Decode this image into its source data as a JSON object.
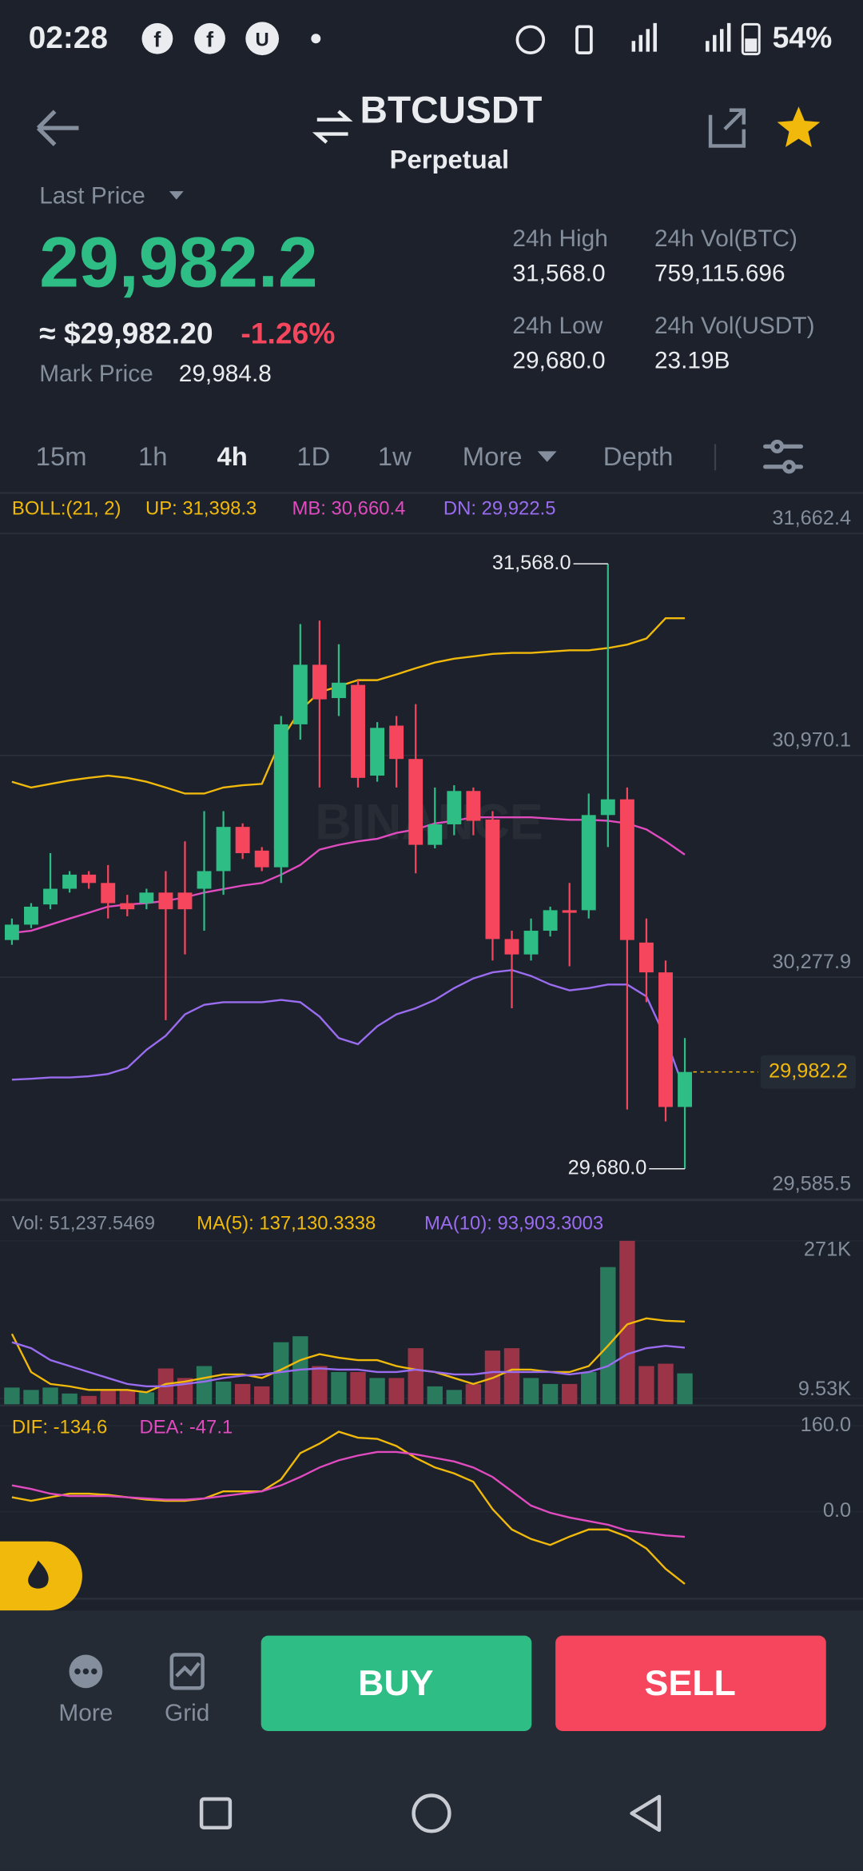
{
  "status_bar": {
    "time": "02:28",
    "battery": "54%"
  },
  "header": {
    "symbol": "BTCUSDT",
    "contract": "Perpetual"
  },
  "price": {
    "label": "Last Price",
    "last": "29,982.2",
    "fiat": "≈ $29,982.20",
    "change": "-1.26%",
    "mark_label": "Mark Price",
    "mark": "29,984.8"
  },
  "stats": [
    {
      "label": "24h High",
      "value": "31,568.0"
    },
    {
      "label": "24h Vol(BTC)",
      "value": "759,115.696"
    },
    {
      "label": "24h Low",
      "value": "29,680.0"
    },
    {
      "label": "24h Vol(USDT)",
      "value": "23.19B"
    }
  ],
  "timeframes": [
    "15m",
    "1h",
    "4h",
    "1D",
    "1w",
    "More",
    "Depth"
  ],
  "watermark": "BINANCE",
  "bottom": {
    "more": "More",
    "grid": "Grid",
    "buy": "BUY",
    "sell": "SELL"
  },
  "chart_data": [
    {
      "type": "candlestick",
      "header": "BOLL:(21, 2)",
      "header_color": "#f0b90b",
      "up_color": "#2ebd85",
      "down_color": "#f6465d",
      "open": [
        30394,
        30442,
        30505,
        30554,
        30598,
        30572,
        30509,
        30509,
        30542,
        30542,
        30554,
        30609,
        30747,
        30673,
        30621,
        31067,
        31253,
        31149,
        31190,
        30907,
        31063,
        30959,
        30691,
        30755,
        30859,
        30770,
        30397,
        30349,
        30423,
        30487,
        30487,
        30784,
        30833,
        30386,
        30293,
        29873
      ],
      "high": [
        30461,
        30509,
        30665,
        30609,
        30609,
        30628,
        30535,
        30554,
        30609,
        30702,
        30796,
        30796,
        30758,
        30684,
        31093,
        31380,
        31391,
        31317,
        31205,
        31074,
        31093,
        31130,
        30870,
        30877,
        30870,
        30796,
        30423,
        30461,
        30498,
        30572,
        30851,
        31568.0,
        30870,
        30461,
        30330,
        30088
      ],
      "low": [
        30379,
        30431,
        30490,
        30542,
        30554,
        30461,
        30468,
        30490,
        30144,
        30349,
        30423,
        30535,
        30647,
        30609,
        30572,
        31019,
        30870,
        31093,
        30870,
        30888,
        30870,
        30602,
        30680,
        30721,
        30721,
        30330,
        30181,
        30330,
        30405,
        30312,
        30461,
        30684,
        29865,
        30200,
        29828,
        29680.0
      ],
      "close": [
        30442,
        30498,
        30554,
        30598,
        30572,
        30509,
        30490,
        30542,
        30490,
        30490,
        30609,
        30747,
        30665,
        30621,
        31067,
        31253,
        31145,
        31197,
        30900,
        31056,
        30959,
        30691,
        30755,
        30859,
        30766,
        30397,
        30349,
        30423,
        30487,
        30479,
        30784,
        30833,
        30394,
        30293,
        29873,
        29982.2
      ],
      "lines": [
        {
          "label": "UP: 31,398.3",
          "color": "#f0b90b",
          "values": [
            30888,
            30870,
            30881,
            30892,
            30900,
            30907,
            30900,
            30888,
            30870,
            30851,
            30851,
            30870,
            30877,
            30881,
            31019,
            31111,
            31167,
            31186,
            31205,
            31205,
            31223,
            31242,
            31260,
            31272,
            31279,
            31287,
            31290,
            31290,
            31294,
            31298,
            31298,
            31305,
            31316,
            31335,
            31398,
            31398.3
          ]
        },
        {
          "label": "MB: 30,660.4",
          "color": "#e04bc0",
          "values": [
            30416,
            30423,
            30442,
            30461,
            30479,
            30498,
            30505,
            30509,
            30516,
            30527,
            30542,
            30553,
            30564,
            30572,
            30598,
            30628,
            30676,
            30691,
            30702,
            30710,
            30728,
            30739,
            30758,
            30766,
            30777,
            30777,
            30777,
            30777,
            30773,
            30769,
            30769,
            30766,
            30758,
            30739,
            30702,
            30660.4
          ]
        },
        {
          "label": "DN: 29,922.5",
          "color": "#9a6cf0",
          "values": [
            29958,
            29961,
            29965,
            29965,
            29969,
            29976,
            29995,
            30051,
            30095,
            30162,
            30192,
            30200,
            30200,
            30200,
            30207,
            30200,
            30155,
            30088,
            30069,
            30125,
            30162,
            30181,
            30207,
            30244,
            30274,
            30293,
            30300,
            30282,
            30255,
            30237,
            30244,
            30255,
            30255,
            30218,
            30088,
            29922.5
          ]
        }
      ],
      "annotations": {
        "high": "31,568.0",
        "low": "29,680.0",
        "last": "29,982.2"
      },
      "ylim": [
        29585.5,
        31662.4
      ],
      "yticks": [
        {
          "value": 31662.4,
          "label": "31,662.4"
        },
        {
          "value": 30970.1,
          "label": "30,970.1"
        },
        {
          "value": 30277.9,
          "label": "30,277.9"
        },
        {
          "value": 29585.5,
          "label": "29,585.5"
        }
      ],
      "grid": true
    },
    {
      "type": "bar",
      "header": "Vol: 51,237.5469",
      "header_color": "#848e9c",
      "up_color": "#2a7a5e",
      "down_color": "#9b3447",
      "values": [
        27692,
        23736,
        27692,
        17802,
        13846,
        23736,
        23736,
        19780,
        59340,
        43516,
        63296,
        37582,
        33626,
        29670,
        102856,
        112746,
        63296,
        53406,
        53406,
        43516,
        43516,
        92966,
        29670,
        23736,
        33626,
        89010,
        92966,
        43516,
        33626,
        33626,
        53406,
        227470,
        271000,
        63296,
        67252,
        51237.5469
      ],
      "lines": [
        {
          "label": "MA(5): 137,130.3338",
          "color": "#f0b90b",
          "values": [
            116702,
            53406,
            33626,
            29670,
            23736,
            23736,
            23736,
            19780,
            33626,
            37582,
            43516,
            49450,
            49450,
            43516,
            57362,
            73186,
            83076,
            77142,
            73186,
            73186,
            63296,
            57362,
            53406,
            43516,
            33626,
            43516,
            57362,
            57362,
            53406,
            53406,
            63296,
            96922,
            132526,
            142416,
            138460,
            137130.3338
          ]
        },
        {
          "label": "MA(10): 93,903.3003",
          "color": "#9a6cf0",
          "values": [
            102856,
            92966,
            73186,
            63296,
            53406,
            43516,
            33626,
            29670,
            29670,
            33626,
            37582,
            43516,
            47472,
            49450,
            53406,
            57362,
            59340,
            57362,
            57362,
            53406,
            53406,
            57362,
            53406,
            49450,
            49450,
            53406,
            53406,
            53406,
            53406,
            49450,
            53406,
            63296,
            83076,
            92966,
            96922,
            93903.3003
          ]
        }
      ],
      "ylim": [
        0,
        271000
      ],
      "yticks": [
        {
          "value": 9530,
          "label": "9.53K"
        },
        {
          "value": 271000,
          "label": "271K"
        }
      ]
    },
    {
      "type": "line",
      "lines": [
        {
          "label": "DIF: -134.6",
          "color": "#f0b90b",
          "values": [
            26.7,
            20,
            26.7,
            33.3,
            33.3,
            31.1,
            26.7,
            22.2,
            20,
            20,
            24.4,
            37.8,
            37.8,
            37.8,
            60,
            108.9,
            126.7,
            148.9,
            137.8,
            135.5,
            122.2,
            100,
            82.2,
            71.1,
            55.6,
            4.4,
            -33.3,
            -51.1,
            -62.2,
            -46.7,
            -33.3,
            -33.3,
            -46.7,
            -68.9,
            -106.7,
            -134.6
          ]
        },
        {
          "label": "DEA: -47.1",
          "color": "#e04bc0",
          "values": [
            48.9,
            42.2,
            33.3,
            28.9,
            28.9,
            28.9,
            26.7,
            24.4,
            22.2,
            22.2,
            24.4,
            28.9,
            33.3,
            37.8,
            48.9,
            64.4,
            82.2,
            95.5,
            104.4,
            111.1,
            111.1,
            106.7,
            100,
            93.3,
            82.2,
            64.4,
            37.8,
            11.1,
            -2.2,
            -11.1,
            -17.8,
            -24.4,
            -35.6,
            -40,
            -44.4,
            -47.1
          ]
        }
      ],
      "ylim": [
        -173.3,
        193.3
      ],
      "yticks": [
        {
          "value": 160,
          "label": "160.0"
        },
        {
          "value": 0,
          "label": "0.0"
        }
      ]
    }
  ]
}
